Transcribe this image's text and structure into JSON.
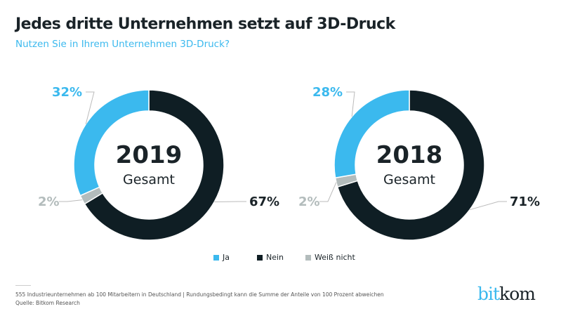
{
  "title": "Jedes dritte Unternehmen setzt auf 3D-Druck",
  "subtitle": "Nutzen Sie in Ihrem Unternehmen 3D-Druck?",
  "colors": {
    "Ja": "#3bb9ee",
    "Nein": "#0f1e24",
    "Weiß nicht": "#b3bcbc"
  },
  "chart_data": [
    {
      "type": "pie",
      "donut": true,
      "center_label": "2019",
      "center_sublabel": "Gesamt",
      "categories": [
        "Ja",
        "Nein",
        "Weiß nicht"
      ],
      "values": [
        32,
        67,
        2
      ],
      "labels": [
        "32%",
        "67%",
        "2%"
      ]
    },
    {
      "type": "pie",
      "donut": true,
      "center_label": "2018",
      "center_sublabel": "Gesamt",
      "categories": [
        "Ja",
        "Nein",
        "Weiß nicht"
      ],
      "values": [
        28,
        71,
        2
      ],
      "labels": [
        "28%",
        "71%",
        "2%"
      ]
    }
  ],
  "legend": [
    "Ja",
    "Nein",
    "Weiß nicht"
  ],
  "footnote": "555 Industrieunternehmen ab 100 Mitarbeitern in Deutschland | Rundungsbedingt kann die Summe der Anteile von 100 Prozent abweichen",
  "source": "Quelle: Bitkom Research",
  "logo": {
    "part1": "bit",
    "part2": "kom"
  }
}
